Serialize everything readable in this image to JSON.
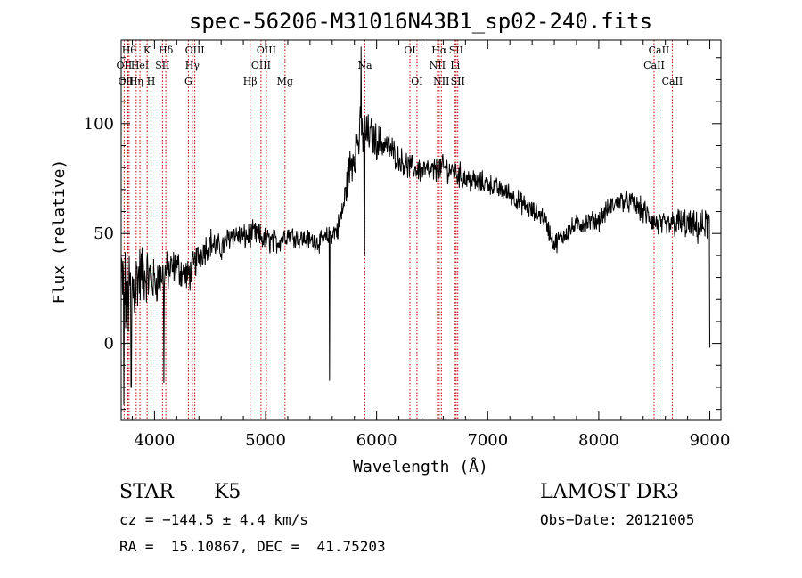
{
  "chart_data": {
    "type": "line",
    "title": "spec-56206-M31016N43B1_sp02-240.fits",
    "xlabel": "Wavelength (Å)",
    "ylabel": "Flux (relative)",
    "xlim": [
      3700,
      9100
    ],
    "ylim": [
      -35,
      138
    ],
    "xticks": [
      4000,
      5000,
      6000,
      7000,
      8000,
      9000
    ],
    "yticks": [
      0,
      50,
      100
    ],
    "series": [
      {
        "name": "flux",
        "anchors_x": [
          3700,
          3750,
          3800,
          3850,
          3900,
          3950,
          4000,
          4100,
          4200,
          4300,
          4400,
          4500,
          4600,
          4700,
          4800,
          4900,
          5000,
          5100,
          5200,
          5300,
          5400,
          5500,
          5600,
          5650,
          5700,
          5750,
          5800,
          5850,
          5900,
          5950,
          6000,
          6100,
          6200,
          6300,
          6400,
          6500,
          6600,
          6700,
          6800,
          6900,
          7000,
          7100,
          7200,
          7300,
          7400,
          7500,
          7600,
          7700,
          7800,
          7900,
          8000,
          8100,
          8200,
          8300,
          8400,
          8500,
          8600,
          8700,
          8800,
          8900,
          9000
        ],
        "anchors_y": [
          30,
          20,
          25,
          30,
          32,
          30,
          28,
          32,
          35,
          30,
          40,
          46,
          43,
          50,
          48,
          50,
          47,
          46,
          50,
          48,
          47,
          46,
          50,
          52,
          62,
          78,
          88,
          95,
          96,
          94,
          92,
          90,
          84,
          80,
          79,
          78,
          80,
          78,
          75,
          73,
          73,
          70,
          68,
          64,
          60,
          58,
          45,
          50,
          54,
          55,
          56,
          62,
          65,
          64,
          60,
          55,
          53,
          55,
          54,
          52,
          55
        ],
        "noise_amplitude": [
          14,
          20,
          18,
          14,
          12,
          10,
          9,
          8,
          7,
          7,
          6,
          6,
          5,
          5,
          5,
          5,
          5,
          5,
          4,
          4,
          4,
          4,
          4,
          5,
          6,
          8,
          10,
          10,
          8,
          8,
          7,
          6,
          5,
          5,
          5,
          5,
          5,
          5,
          5,
          5,
          4,
          4,
          4,
          4,
          4,
          4,
          4,
          4,
          4,
          4,
          4,
          4,
          4,
          4,
          5,
          5,
          5,
          6,
          6,
          6,
          7
        ],
        "features": [
          {
            "x": 3725,
            "y": -28
          },
          {
            "x": 3790,
            "y": -20
          },
          {
            "x": 4085,
            "y": -18
          },
          {
            "x": 5577,
            "y": -17
          },
          {
            "x": 5860,
            "y": 135
          },
          {
            "x": 5890,
            "y": 40
          },
          {
            "x": 9000,
            "y": -2
          }
        ]
      }
    ],
    "line_markers": [
      {
        "x": 3727,
        "label": "OII",
        "row": 1
      },
      {
        "x": 3760,
        "label": "OIII",
        "row": 2
      },
      {
        "x": 3771,
        "label": "Hθ",
        "row": 0
      },
      {
        "x": 3835,
        "label": "Hη",
        "row": 2
      },
      {
        "x": 3869,
        "label": "HeI",
        "row": 1
      },
      {
        "x": 3934,
        "label": "K",
        "row": 0
      },
      {
        "x": 3969,
        "label": "H",
        "row": 2
      },
      {
        "x": 4072,
        "label": "SII",
        "row": 1
      },
      {
        "x": 4102,
        "label": "Hδ",
        "row": 0
      },
      {
        "x": 4305,
        "label": "G",
        "row": 2
      },
      {
        "x": 4341,
        "label": "Hγ",
        "row": 1
      },
      {
        "x": 4363,
        "label": "OIII",
        "row": 0
      },
      {
        "x": 4861,
        "label": "Hβ",
        "row": 2
      },
      {
        "x": 4959,
        "label": "OIII",
        "row": 1
      },
      {
        "x": 5007,
        "label": "OIII",
        "row": 0
      },
      {
        "x": 5175,
        "label": "Mg",
        "row": 2
      },
      {
        "x": 5894,
        "label": "Na",
        "row": 1
      },
      {
        "x": 6300,
        "label": "OI",
        "row": 0
      },
      {
        "x": 6363,
        "label": "OI",
        "row": 2
      },
      {
        "x": 6548,
        "label": "NII",
        "row": 1
      },
      {
        "x": 6563,
        "label": "Hα",
        "row": 0
      },
      {
        "x": 6583,
        "label": "NII",
        "row": 2
      },
      {
        "x": 6707,
        "label": "Li",
        "row": 1
      },
      {
        "x": 6716,
        "label": "SII",
        "row": 0
      },
      {
        "x": 6731,
        "label": "SII",
        "row": 2
      },
      {
        "x": 8498,
        "label": "CaII",
        "row": 1
      },
      {
        "x": 8542,
        "label": "CaII",
        "row": 0
      },
      {
        "x": 8662,
        "label": "CaII",
        "row": 2
      }
    ]
  },
  "footer": {
    "class_label": "STAR",
    "subclass": "K5",
    "survey": "LAMOST DR3",
    "cz": "cz = −144.5 ± 4.4 km/s",
    "obs_date": "Obs−Date: 20121005",
    "coords": "RA =  15.10867, DEC =  41.75203"
  }
}
